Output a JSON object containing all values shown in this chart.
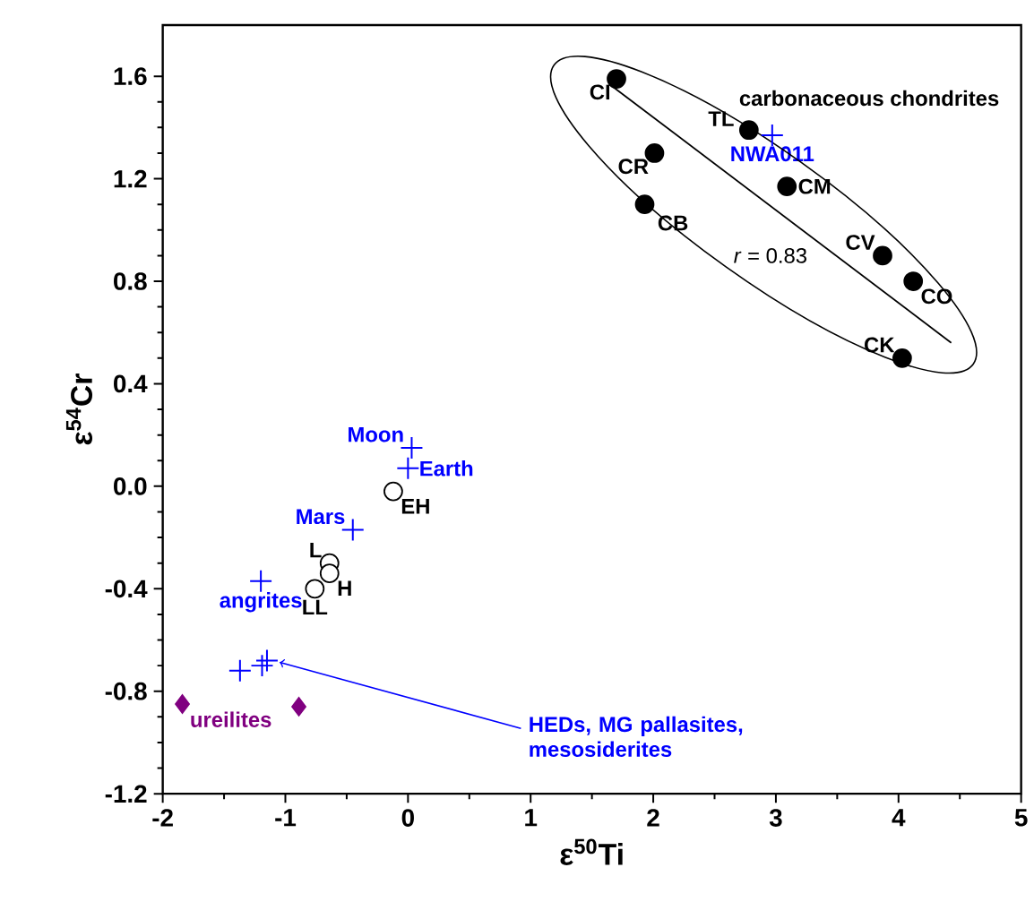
{
  "chart_data": {
    "type": "scatter",
    "xlabel": "ε$^{50}$Ti",
    "ylabel": "ε$^{54}$Cr",
    "xlim": [
      -2,
      5
    ],
    "xticks": [
      -2,
      -1,
      0,
      1,
      2,
      3,
      4,
      5
    ],
    "ylim": [
      -1.2,
      1.8
    ],
    "yticks": [
      -1.2,
      -0.8,
      -0.4,
      {
        "value": 0,
        "label": "0.0"
      },
      0.4,
      0.8,
      1.2,
      1.6
    ],
    "grid": false,
    "series": [
      {
        "name": "carbonaceous chondrites",
        "color": "#000000",
        "marker": "circle",
        "x": [
          1.7,
          2.78,
          2.01,
          1.93,
          3.09,
          3.87,
          4.12,
          4.03
        ],
        "values": [
          1.59,
          1.39,
          1.3,
          1.1,
          1.17,
          0.9,
          0.8,
          0.5
        ]
      },
      {
        "type": "line",
        "color": "#000000",
        "marker": "none",
        "x": [
          1.64,
          4.43
        ],
        "values": [
          1.57,
          0.56
        ]
      },
      {
        "color": "#ffffff",
        "marker": "circle",
        "x": [
          -0.12,
          -0.64,
          -0.64,
          -0.76
        ],
        "values": [
          -0.02,
          -0.3,
          -0.34,
          -0.4
        ]
      },
      {
        "color": "#0000ff",
        "marker": "cross",
        "x": [
          2.97,
          0.03,
          0.0,
          -0.45,
          -1.2,
          -1.37,
          -1.19,
          -1.15
        ],
        "values": [
          1.37,
          0.15,
          0.07,
          -0.17,
          -0.37,
          -0.72,
          -0.7,
          -0.68
        ]
      },
      {
        "color": "#800080",
        "marker": "diamond",
        "x": [
          -1.84,
          -0.89
        ],
        "values": [
          -0.85,
          -0.86
        ]
      }
    ],
    "annotations": [
      {
        "text": "CI",
        "x": 1.7,
        "y": 1.59
      },
      {
        "text": "TL",
        "x": 2.78,
        "y": 1.39
      },
      {
        "text": "NWA011",
        "x": 2.97,
        "y": 1.37
      },
      {
        "text": "CR",
        "x": 2.01,
        "y": 1.3
      },
      {
        "text": "CB",
        "x": 1.93,
        "y": 1.1
      },
      {
        "text": "CM",
        "x": 3.09,
        "y": 1.17
      },
      {
        "text": "CV",
        "x": 3.87,
        "y": 0.9
      },
      {
        "text": "CO",
        "x": 4.12,
        "y": 0.8
      },
      {
        "text": "CK",
        "x": 4.03,
        "y": 0.5
      },
      {
        "text": "Moon",
        "x": 0.03,
        "y": 0.15
      },
      {
        "text": "Earth",
        "x": 0.0,
        "y": 0.07
      },
      {
        "text": "EH",
        "x": -0.12,
        "y": -0.02
      },
      {
        "text": "Mars",
        "x": -0.45,
        "y": -0.17
      },
      {
        "text": "L",
        "x": -0.64,
        "y": -0.3
      },
      {
        "text": "H",
        "x": -0.64,
        "y": -0.34
      },
      {
        "text": "LL",
        "x": -0.76,
        "y": -0.4
      },
      {
        "text": "angrites",
        "x": -1.2,
        "y": -0.37
      },
      {
        "text": "ureilites",
        "x": -1.84,
        "y": -0.85
      },
      {
        "text": "HEDs, MG pallasites, mesosiderites",
        "x": -1.15,
        "y": -0.68
      },
      "*r* = 0.83"
    ]
  }
}
